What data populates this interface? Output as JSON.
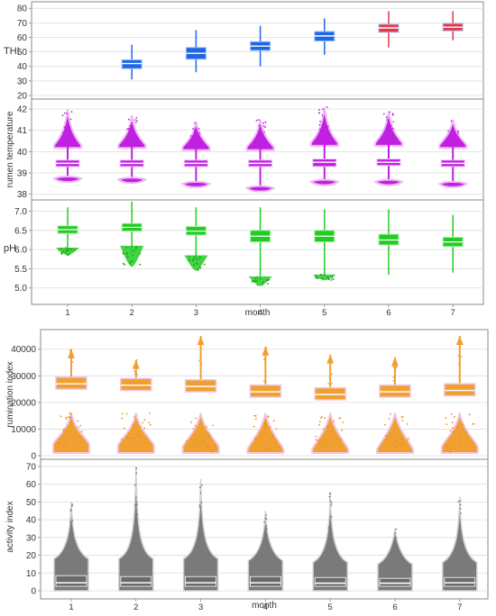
{
  "chart_data": [
    {
      "type": "box-violin",
      "figure": "top",
      "xlabel": "month",
      "categories": [
        "1",
        "2",
        "3",
        "4",
        "5",
        "6",
        "7"
      ],
      "panels": [
        {
          "ylabel": "THI",
          "ylim": [
            20,
            82
          ],
          "yticks": [
            20,
            30,
            40,
            50,
            60,
            70,
            80
          ],
          "color": "#1f66e6",
          "glow": "#9bbcf5",
          "boxes": [
            null,
            {
              "whislo": 31,
              "q1": 38.5,
              "med": 42,
              "q3": 44.5,
              "whishi": 55
            },
            {
              "whislo": 36,
              "q1": 45,
              "med": 49,
              "q3": 53,
              "whishi": 65
            },
            {
              "whislo": 40,
              "q1": 51,
              "med": 54,
              "q3": 57,
              "whishi": 68
            },
            {
              "whislo": 48,
              "q1": 57.5,
              "med": 61,
              "q3": 64,
              "whishi": 73
            },
            {
              "whislo": 53,
              "q1": 63.5,
              "med": 66.5,
              "q3": 69,
              "whishi": 78
            },
            {
              "whislo": 58,
              "q1": 64.5,
              "med": 67,
              "q3": 69.5,
              "whishi": 78
            }
          ],
          "special_colors": {
            "5": "#e03a4a",
            "6": "#e03a4a"
          }
        },
        {
          "ylabel": "rumen temperature",
          "ylim": [
            37.9,
            42.3
          ],
          "yticks": [
            38,
            39,
            40,
            41,
            42
          ],
          "color": "#c020e0",
          "glow": "#f0b8f8",
          "boxes": [
            {
              "whislo": 38.65,
              "q1": 39.3,
              "med": 39.45,
              "q3": 39.6,
              "whishi": 40.3,
              "tail_top": 42.0,
              "tail_bot": 38.65
            },
            {
              "whislo": 38.6,
              "q1": 39.3,
              "med": 39.45,
              "q3": 39.6,
              "whishi": 40.3,
              "tail_top": 41.7,
              "tail_bot": 38.6
            },
            {
              "whislo": 38.5,
              "q1": 39.3,
              "med": 39.45,
              "q3": 39.6,
              "whishi": 40.2,
              "tail_top": 41.4,
              "tail_bot": 38.4
            },
            {
              "whislo": 38.4,
              "q1": 39.3,
              "med": 39.45,
              "q3": 39.6,
              "whishi": 40.2,
              "tail_top": 41.5,
              "tail_bot": 38.2
            },
            {
              "whislo": 38.6,
              "q1": 39.3,
              "med": 39.5,
              "q3": 39.65,
              "whishi": 40.4,
              "tail_top": 42.1,
              "tail_bot": 38.5
            },
            {
              "whislo": 38.6,
              "q1": 39.35,
              "med": 39.5,
              "q3": 39.65,
              "whishi": 40.4,
              "tail_top": 41.9,
              "tail_bot": 38.5
            },
            {
              "whislo": 38.5,
              "q1": 39.3,
              "med": 39.45,
              "q3": 39.6,
              "whishi": 40.3,
              "tail_top": 41.5,
              "tail_bot": 38.4
            }
          ]
        },
        {
          "ylabel": "pH",
          "ylim": [
            4.9,
            7.2
          ],
          "yticks": [
            5.0,
            5.5,
            6.0,
            6.5,
            7.0
          ],
          "color": "#22cc22",
          "glow": "#a8f0a8",
          "boxes": [
            {
              "whislo": 5.95,
              "q1": 6.42,
              "med": 6.52,
              "q3": 6.62,
              "whishi": 7.1,
              "outlier_lo": 5.85,
              "outlier_hi": 6.05
            },
            {
              "whislo": 5.9,
              "q1": 6.48,
              "med": 6.58,
              "q3": 6.68,
              "whishi": 7.25,
              "outlier_lo": 5.55,
              "outlier_hi": 6.1
            },
            {
              "whislo": 5.75,
              "q1": 6.38,
              "med": 6.48,
              "q3": 6.6,
              "whishi": 7.1,
              "outlier_lo": 5.45,
              "outlier_hi": 5.85
            },
            {
              "whislo": 5.3,
              "q1": 6.2,
              "med": 6.35,
              "q3": 6.5,
              "whishi": 7.1,
              "outlier_lo": 5.05,
              "outlier_hi": 5.3
            },
            {
              "whislo": 5.3,
              "q1": 6.2,
              "med": 6.35,
              "q3": 6.5,
              "whishi": 7.05,
              "outlier_lo": 5.2,
              "outlier_hi": 5.35
            },
            {
              "whislo": 5.35,
              "q1": 6.12,
              "med": 6.25,
              "q3": 6.4,
              "whishi": 7.05,
              "outlier_lo": null,
              "outlier_hi": null
            },
            {
              "whislo": 5.4,
              "q1": 6.08,
              "med": 6.2,
              "q3": 6.32,
              "whishi": 6.9,
              "outlier_lo": null,
              "outlier_hi": null
            }
          ]
        }
      ]
    },
    {
      "type": "box-violin",
      "figure": "bottom",
      "xlabel": "month",
      "categories": [
        "1",
        "2",
        "3",
        "4",
        "5",
        "6",
        "7"
      ],
      "panels": [
        {
          "ylabel": "rumination index",
          "ylim": [
            0,
            46000
          ],
          "yticks": [
            0,
            10000,
            20000,
            30000,
            40000
          ],
          "color": "#f0a030",
          "glow": "#f4c4e4",
          "boxes": [
            {
              "q1": 25000,
              "med": 27000,
              "q3": 29500,
              "whishi": 40000,
              "tail_lo": 1000,
              "blob": 5000
            },
            {
              "q1": 24500,
              "med": 26500,
              "q3": 29000,
              "whishi": 36000,
              "tail_lo": 1000,
              "blob": 4500
            },
            {
              "q1": 24000,
              "med": 26000,
              "q3": 28500,
              "whishi": 45000,
              "tail_lo": 1000,
              "blob": 4000
            },
            {
              "q1": 22000,
              "med": 24000,
              "q3": 26500,
              "whishi": 41000,
              "tail_lo": 1000,
              "blob": 3000
            },
            {
              "q1": 21000,
              "med": 23000,
              "q3": 25500,
              "whishi": 38000,
              "tail_lo": 1000,
              "blob": 3000
            },
            {
              "q1": 22000,
              "med": 24000,
              "q3": 26500,
              "whishi": 37000,
              "tail_lo": 1000,
              "blob": 3000
            },
            {
              "q1": 22500,
              "med": 24500,
              "q3": 27000,
              "whishi": 45000,
              "tail_lo": 1000,
              "blob": 4000
            }
          ]
        },
        {
          "ylabel": "activity index",
          "ylim": [
            0,
            72
          ],
          "yticks": [
            0,
            10,
            20,
            30,
            40,
            50,
            60,
            70
          ],
          "color": "#7a7a7a",
          "glow": "#d0d0d0",
          "boxes": [
            {
              "q1": 2.5,
              "med": 4.5,
              "q3": 8.5,
              "mode": 18,
              "tail_hi": 50
            },
            {
              "q1": 2.5,
              "med": 4.5,
              "q3": 8,
              "mode": 18,
              "tail_hi": 70
            },
            {
              "q1": 2.5,
              "med": 4.5,
              "q3": 8,
              "mode": 18,
              "tail_hi": 63
            },
            {
              "q1": 2.5,
              "med": 4.5,
              "q3": 8,
              "mode": 17,
              "tail_hi": 45
            },
            {
              "q1": 2.5,
              "med": 4.3,
              "q3": 7.5,
              "mode": 16,
              "tail_hi": 55
            },
            {
              "q1": 2.5,
              "med": 4.3,
              "q3": 7,
              "mode": 15,
              "tail_hi": 35
            },
            {
              "q1": 2.5,
              "med": 4.5,
              "q3": 7.5,
              "mode": 16,
              "tail_hi": 53
            }
          ]
        }
      ]
    }
  ]
}
